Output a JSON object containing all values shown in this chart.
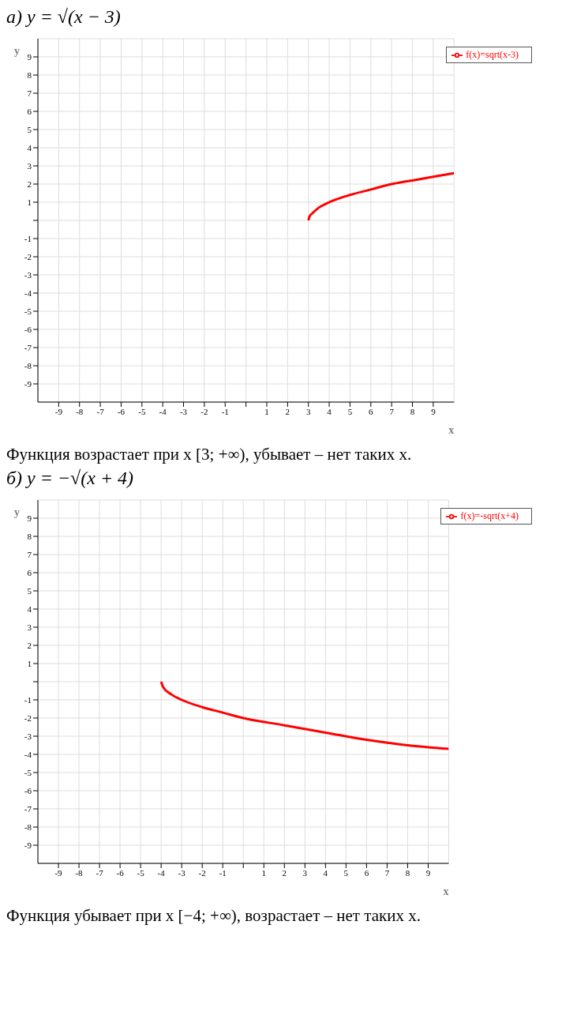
{
  "chart_data": [
    {
      "type": "line",
      "title": "а) y = √(x − 3)",
      "xlabel": "x",
      "ylabel": "y",
      "series": [
        {
          "name": "f(x)=sqrt(x-3)",
          "color": "#ff0000",
          "x": [
            3,
            3.05,
            3.2,
            3.5,
            4,
            5,
            6,
            7,
            8,
            9,
            10
          ],
          "values": [
            0,
            0.2,
            0.4,
            0.7,
            1,
            1.4,
            1.7,
            2,
            2.2,
            2.4,
            2.6
          ]
        }
      ],
      "xlim": [
        -10,
        10
      ],
      "ylim": [
        -10,
        10
      ],
      "xticks": [
        -9,
        -8,
        -7,
        -6,
        -5,
        -4,
        -3,
        -2,
        -1,
        {
          "value": 0,
          "label": null
        },
        1,
        2,
        3,
        4,
        5,
        6,
        7,
        8,
        9
      ],
      "yticks": [
        -9,
        -8,
        -7,
        -6,
        -5,
        -4,
        -3,
        -2,
        -1,
        {
          "value": 0,
          "label": null
        },
        1,
        2,
        3,
        4,
        5,
        6,
        7,
        8,
        9
      ],
      "grid": true,
      "legend": "top right",
      "annotations": [
        "Функция возрастает при x [3; +∞), убывает – нет таких x."
      ]
    },
    {
      "type": "line",
      "title": "б) y = −√(x + 4)",
      "xlabel": "x",
      "ylabel": "y",
      "series": [
        {
          "name": "f(x)=-sqrt(x+4)",
          "color": "#ff0000",
          "x": [
            -4,
            -3.9,
            -3.5,
            -3,
            -2,
            -1,
            0,
            2,
            4,
            6,
            8,
            10
          ],
          "values": [
            0,
            -0.3,
            -0.7,
            -1,
            -1.4,
            -1.7,
            -2,
            -2.4,
            -2.8,
            -3.2,
            -3.5,
            -3.7
          ]
        }
      ],
      "xlim": [
        -10,
        10
      ],
      "ylim": [
        -10,
        10
      ],
      "xticks": [
        -9,
        -8,
        -7,
        -6,
        -5,
        -4,
        -3,
        -2,
        -1,
        {
          "value": 0,
          "label": null
        },
        1,
        2,
        3,
        4,
        5,
        6,
        7,
        8,
        9
      ],
      "yticks": [
        -9,
        -8,
        -7,
        -6,
        -5,
        -4,
        -3,
        -2,
        -1,
        {
          "value": 0,
          "label": null
        },
        1,
        2,
        3,
        4,
        5,
        6,
        7,
        8,
        9
      ],
      "grid": true,
      "legend": "top right",
      "annotations": [
        "Функция убывает при x [−4; +∞), возрастает – нет таких x."
      ]
    }
  ]
}
